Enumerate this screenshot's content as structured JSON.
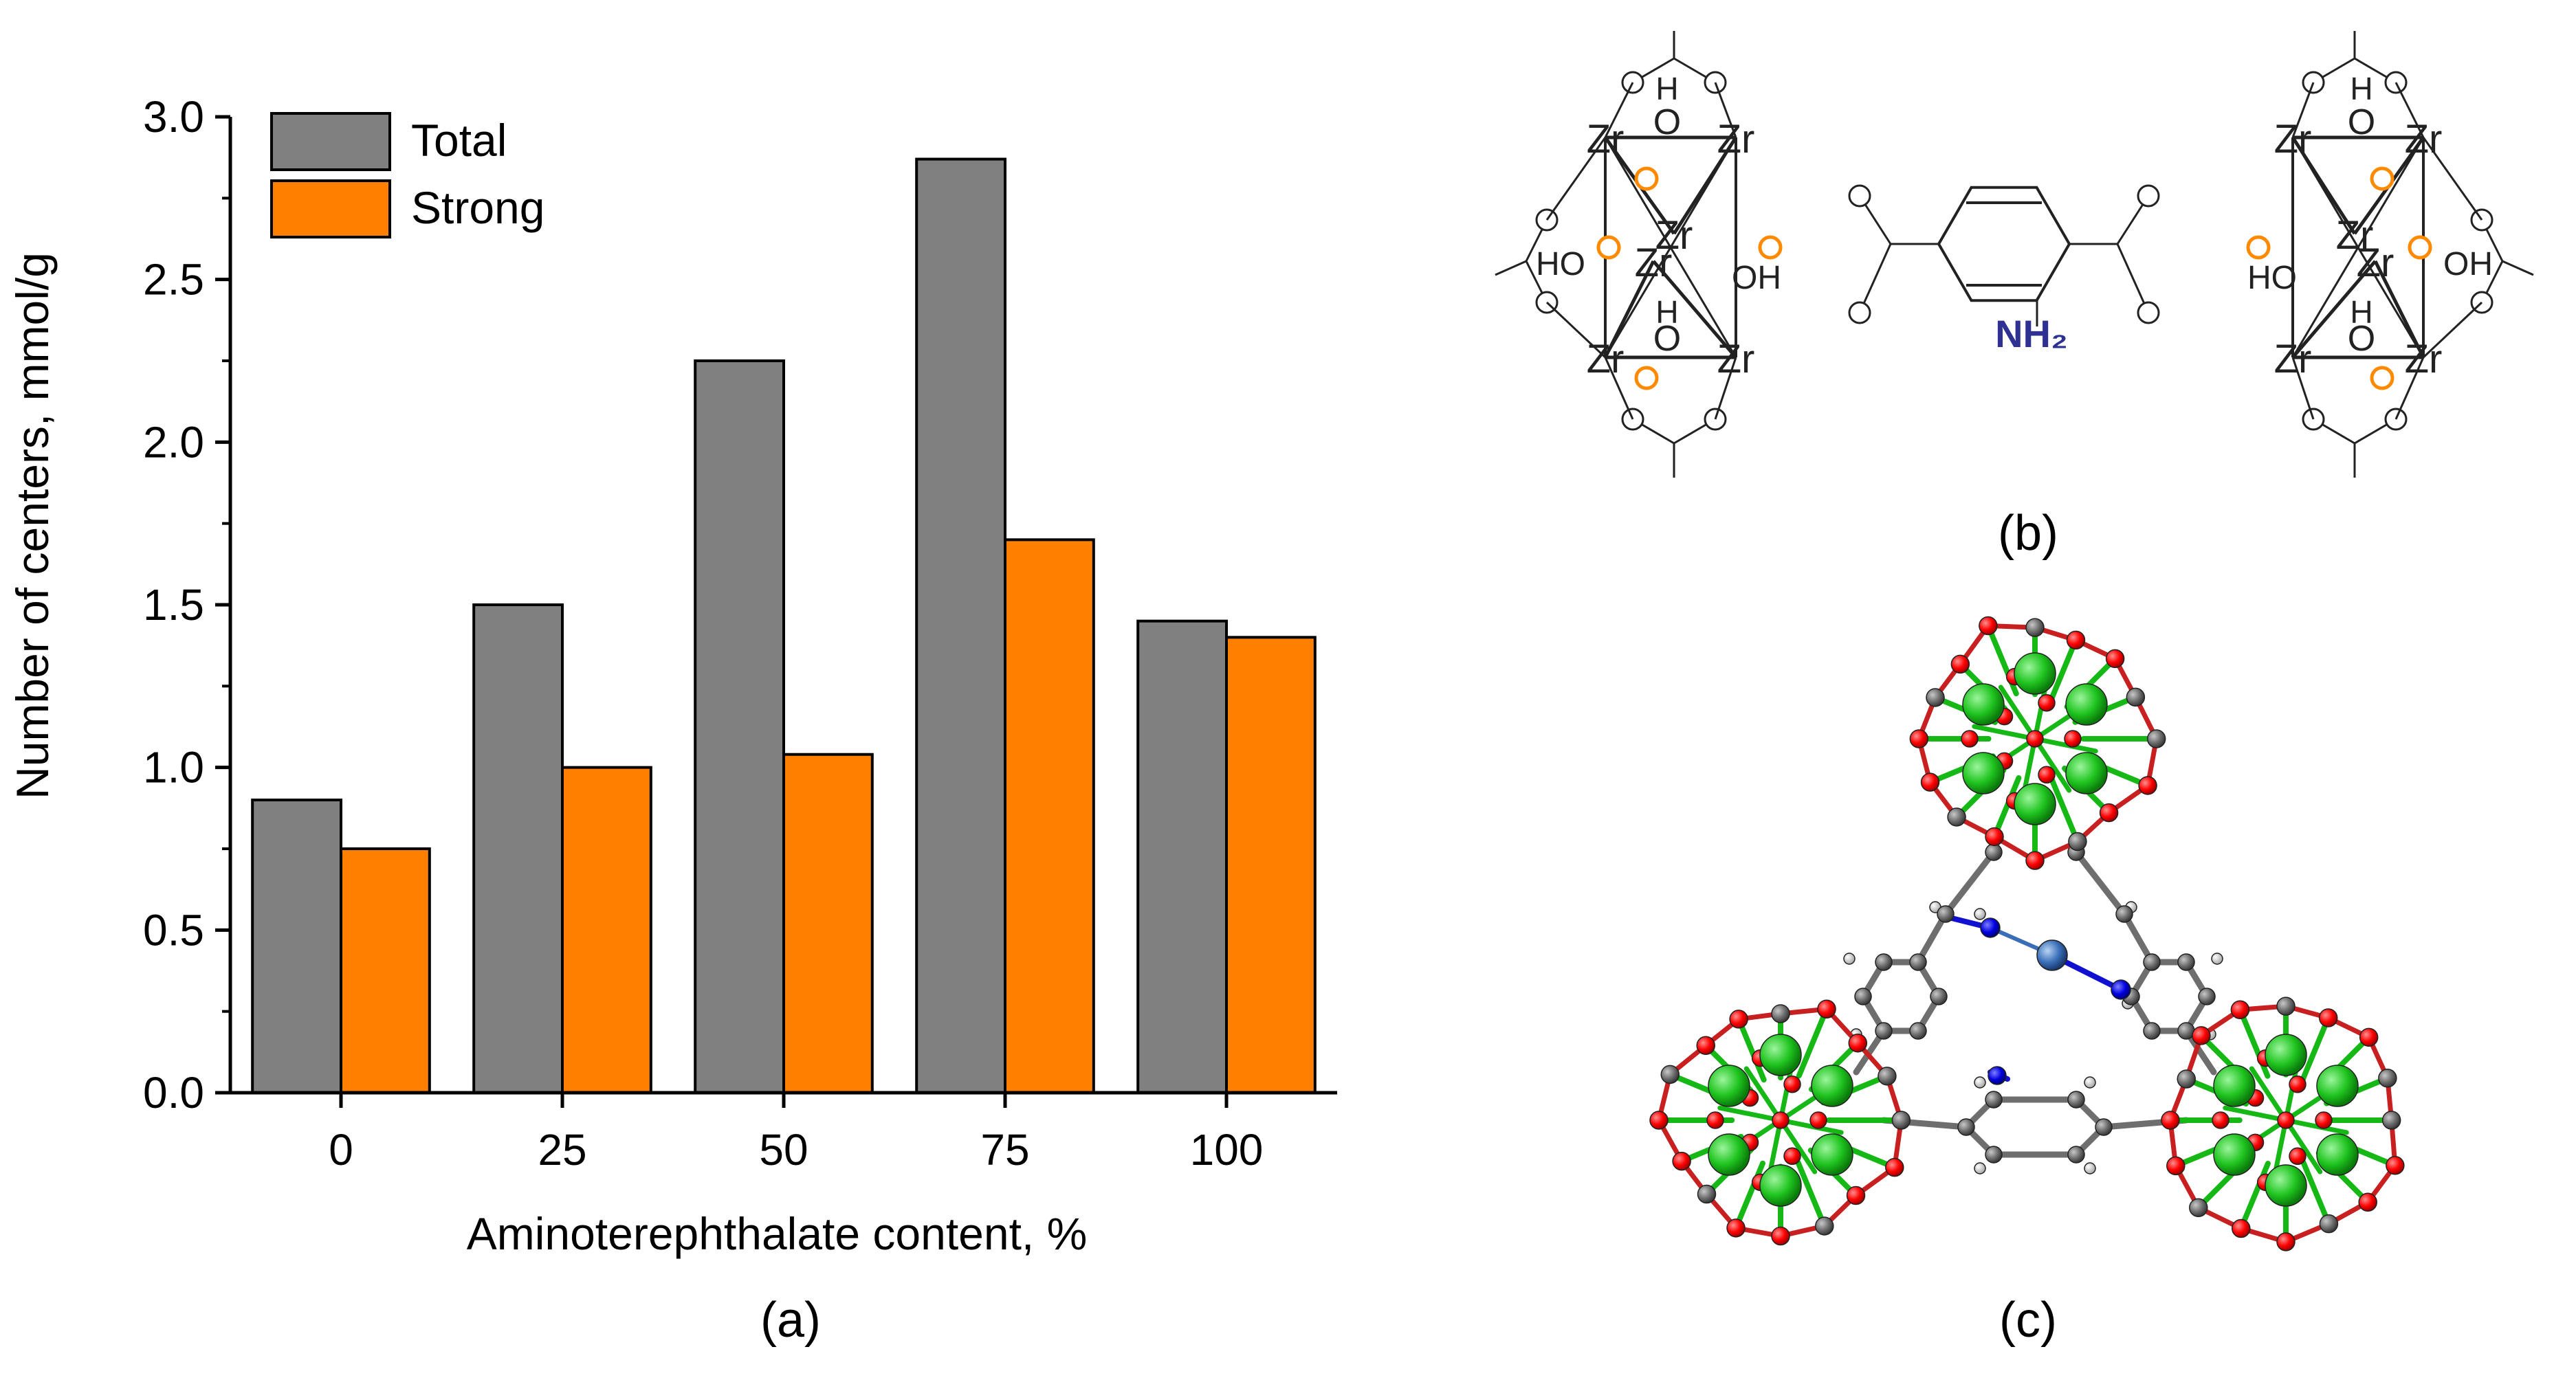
{
  "chart_data": {
    "type": "bar",
    "categories": [
      "0",
      "25",
      "50",
      "75",
      "100"
    ],
    "series": [
      {
        "name": "Total",
        "values": [
          0.9,
          1.5,
          2.25,
          2.87,
          1.45
        ],
        "color": "#808080"
      },
      {
        "name": "Strong",
        "values": [
          0.75,
          1.0,
          1.04,
          1.7,
          1.4
        ],
        "color": "#FF8000"
      }
    ],
    "xlabel": "Aminoterephthalate content, %",
    "ylabel": "Number of centers, mmol/g",
    "ylim": [
      0,
      3.0
    ],
    "yticks": [
      "0.0",
      "0.5",
      "1.0",
      "1.5",
      "2.0",
      "2.5",
      "3.0"
    ],
    "grid": false,
    "legend_position": "top-left"
  },
  "panels": {
    "a": "(a)",
    "b": "(b)",
    "c": "(c)"
  },
  "structure_b": {
    "zr": "Zr",
    "o": "O",
    "h": "H",
    "ho": "HO",
    "oh": "OH",
    "nh2": "NH₂"
  },
  "colors": {
    "zr_atom": "#1FC41F",
    "o_atom": "#FF0000",
    "c_atom": "#6E6E6E",
    "n_atom": "#0000E0",
    "h_atom": "#E8E8E8",
    "highlight_o": "#FF8A00",
    "amine": "#2E3192"
  }
}
